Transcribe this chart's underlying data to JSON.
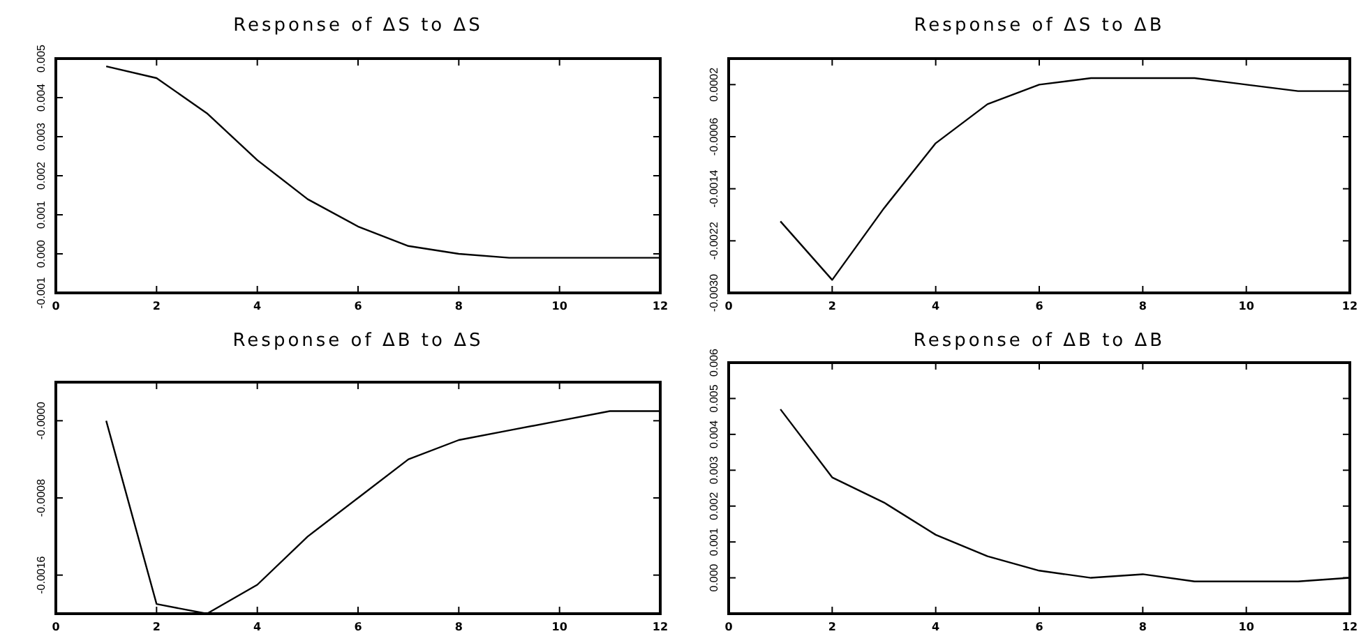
{
  "chart_data": [
    {
      "type": "line",
      "title": "Response of ΔS to ΔS",
      "x": [
        1,
        2,
        3,
        4,
        5,
        6,
        7,
        8,
        9,
        10,
        11,
        12
      ],
      "series": [
        {
          "color": "#000000",
          "values": [
            0.0048,
            0.0045,
            0.0036,
            0.0024,
            0.0014,
            0.0007,
            0.0002,
            0.0,
            -0.0001,
            -0.0001,
            -0.0001,
            -0.0001
          ]
        }
      ],
      "xlim": [
        0,
        12
      ],
      "xticks": [
        0,
        2,
        4,
        6,
        8,
        10,
        12
      ],
      "ylim": [
        -0.001,
        0.005
      ],
      "yticks": [
        {
          "value": -0.001,
          "label": "-0.001"
        },
        {
          "value": 0,
          "label": "0.000"
        },
        {
          "value": 0.001,
          "label": "0.001"
        },
        {
          "value": 0.002,
          "label": "0.002"
        },
        {
          "value": 0.003,
          "label": "0.003"
        },
        {
          "value": 0.004,
          "label": "0.004"
        },
        {
          "value": 0.005,
          "label": "0.005"
        }
      ]
    },
    {
      "type": "line",
      "title": "Response of ΔS to ΔB",
      "x": [
        1,
        2,
        3,
        4,
        5,
        6,
        7,
        8,
        9,
        10,
        11,
        12
      ],
      "series": [
        {
          "color": "#000000",
          "values": [
            -0.0019,
            -0.0028,
            -0.0017,
            -0.0007,
            -0.0001,
            0.0002,
            0.0003,
            0.0003,
            0.0003,
            0.0002,
            0.0001,
            0.0001
          ]
        }
      ],
      "xlim": [
        0,
        12
      ],
      "xticks": [
        0,
        2,
        4,
        6,
        8,
        10,
        12
      ],
      "ylim": [
        -0.003,
        0.0006
      ],
      "yticks": [
        {
          "value": -0.003,
          "label": "-0.0030"
        },
        {
          "value": -0.0022,
          "label": "-0.0022"
        },
        {
          "value": -0.0014,
          "label": "-0.0014"
        },
        {
          "value": -0.0006,
          "label": "-0.0006"
        },
        {
          "value": 0.0002,
          "label": "0.0002"
        }
      ]
    },
    {
      "type": "line",
      "title": "Response of ΔB to ΔS",
      "x": [
        1,
        2,
        3,
        4,
        5,
        6,
        7,
        8,
        9,
        10,
        11,
        12
      ],
      "series": [
        {
          "color": "#000000",
          "values": [
            0.0,
            -0.0019,
            -0.002,
            -0.0017,
            -0.0012,
            -0.0008,
            -0.0004,
            -0.0002,
            -0.0001,
            0.0,
            0.0001,
            0.0001
          ]
        }
      ],
      "xlim": [
        0,
        12
      ],
      "xticks": [
        0,
        2,
        4,
        6,
        8,
        10,
        12
      ],
      "ylim": [
        -0.002,
        0.0004
      ],
      "yticks": [
        {
          "value": -0.0016,
          "label": "-0.0016"
        },
        {
          "value": -0.0008,
          "label": "-0.0008"
        },
        {
          "value": 0,
          "label": "-0.0000"
        }
      ]
    },
    {
      "type": "line",
      "title": "Response of ΔB to ΔB",
      "x": [
        1,
        2,
        3,
        4,
        5,
        6,
        7,
        8,
        9,
        10,
        11,
        12
      ],
      "series": [
        {
          "color": "#000000",
          "values": [
            0.0047,
            0.0028,
            0.0021,
            0.0012,
            0.0006,
            0.0002,
            0.0,
            0.0001,
            -0.0001,
            -0.0001,
            -0.0001,
            0.0
          ]
        }
      ],
      "xlim": [
        0,
        12
      ],
      "xticks": [
        0,
        2,
        4,
        6,
        8,
        10,
        12
      ],
      "ylim": [
        -0.001,
        0.006
      ],
      "yticks": [
        {
          "value": 0,
          "label": "0.000"
        },
        {
          "value": 0.001,
          "label": "0.001"
        },
        {
          "value": 0.002,
          "label": "0.002"
        },
        {
          "value": 0.003,
          "label": "0.003"
        },
        {
          "value": 0.004,
          "label": "0.004"
        },
        {
          "value": 0.005,
          "label": "0.005"
        },
        {
          "value": 0.006,
          "label": "0.006"
        }
      ]
    }
  ]
}
